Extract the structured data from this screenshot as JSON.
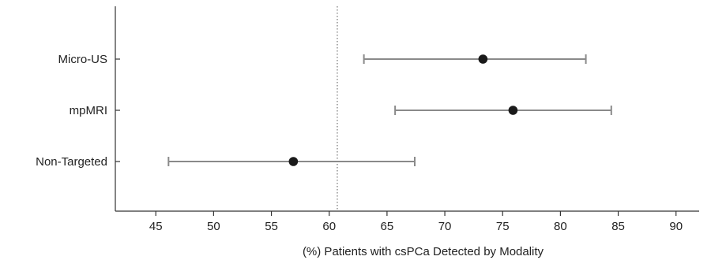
{
  "chart_data": {
    "type": "forest",
    "title": "",
    "xlabel": "(%) Patients with csPCa Detected by Modality",
    "ylabel": "",
    "xlim": [
      41.5,
      92
    ],
    "xticks": [
      45,
      50,
      55,
      60,
      65,
      70,
      75,
      80,
      85,
      90
    ],
    "reference_line": 60.7,
    "grid": false,
    "categories": [
      "Micro-US",
      "mpMRI",
      "Non-Targeted"
    ],
    "series": [
      {
        "estimates": [
          73.3,
          75.9,
          56.9
        ],
        "ci_low": [
          63.0,
          65.7,
          46.1
        ],
        "ci_high": [
          82.2,
          84.4,
          67.4
        ]
      }
    ],
    "colors": {
      "point": "#1a1a1a",
      "error_bar": "#8a8a8a",
      "axis": "#333333",
      "reference": "#555555"
    }
  }
}
